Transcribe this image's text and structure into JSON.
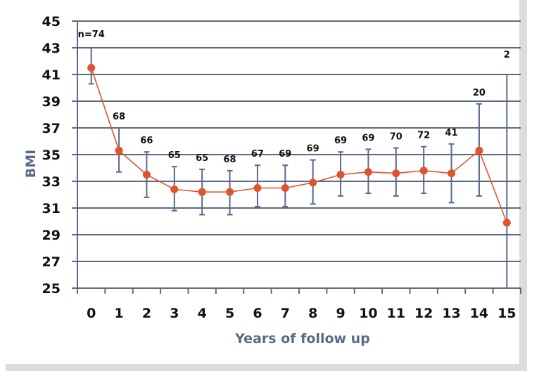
{
  "chart_data": {
    "type": "line",
    "xlabel": "Years of follow up",
    "ylabel": "BMI",
    "ylim": [
      25,
      45
    ],
    "yticks": [
      "45",
      "43",
      "41",
      "39",
      "37",
      "35",
      "33",
      "31",
      "29",
      "27",
      "25"
    ],
    "categories": [
      "0",
      "1",
      "2",
      "3",
      "4",
      "5",
      "6",
      "7",
      "8",
      "9",
      "10",
      "11",
      "12",
      "13",
      "14",
      "15"
    ],
    "series": [
      {
        "values": [
          41.5,
          35.3,
          33.5,
          32.4,
          32.2,
          32.2,
          32.5,
          32.5,
          32.9,
          33.5,
          33.7,
          33.6,
          33.8,
          33.6,
          35.3,
          29.9
        ],
        "error_low": [
          40.3,
          33.7,
          31.8,
          30.8,
          30.5,
          30.5,
          31.1,
          31.1,
          31.3,
          31.9,
          32.1,
          31.9,
          32.1,
          31.4,
          31.9,
          25.0
        ],
        "error_high": [
          43.0,
          37.0,
          35.2,
          34.1,
          33.9,
          33.8,
          34.2,
          34.2,
          34.6,
          35.2,
          35.4,
          35.5,
          35.6,
          35.8,
          38.8,
          41.0
        ],
        "n_labels": [
          "n=74",
          "68",
          "66",
          "65",
          "65",
          "68",
          "67",
          "69",
          "69",
          "69",
          "69",
          "70",
          "72",
          "41",
          "20",
          "2"
        ]
      }
    ],
    "grid": true,
    "colors": {
      "line": "#e0532c",
      "marker": "#e0532c",
      "error_bar": "#5a6a86",
      "grid": "#5a6a86",
      "axis_title": "#5a6a86"
    }
  }
}
